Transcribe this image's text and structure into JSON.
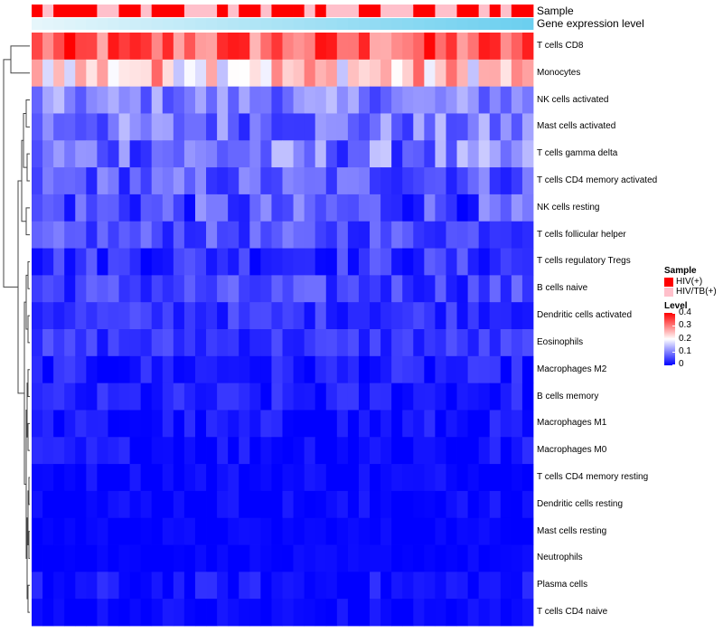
{
  "annotation_labels": {
    "sample": "Sample",
    "gene_expression_level": "Gene expression level"
  },
  "legend": {
    "sample_title": "Sample",
    "sample_items": [
      {
        "label": "HIV(+)",
        "color": "#ff0000"
      },
      {
        "label": "HIV/TB(+)",
        "color": "#ffc0cb"
      }
    ],
    "level_title": "Level",
    "level_ticks": [
      "0.4",
      "0.3",
      "0.2",
      "0.1",
      "0"
    ]
  },
  "colors": {
    "low": "#0000ff",
    "mid": "#ffffff",
    "high": "#ff0000",
    "gel_start": "#e6f6fb",
    "gel_end": "#6ccfef",
    "dendrogram": "#444444"
  },
  "chart_data": {
    "type": "heatmap",
    "title": "",
    "color_scale": {
      "min": 0,
      "max": 0.4,
      "legend_title": "Level"
    },
    "columns": {
      "count": 46
    },
    "column_annotations": {
      "sample": [
        "HIV(+)",
        "HIV/TB(+)",
        "HIV(+)",
        "HIV(+)",
        "HIV(+)",
        "HIV(+)",
        "HIV/TB(+)",
        "HIV/TB(+)",
        "HIV(+)",
        "HIV(+)",
        "HIV/TB(+)",
        "HIV(+)",
        "HIV(+)",
        "HIV(+)",
        "HIV/TB(+)",
        "HIV/TB(+)",
        "HIV/TB(+)",
        "HIV(+)",
        "HIV/TB(+)",
        "HIV(+)",
        "HIV(+)",
        "HIV/TB(+)",
        "HIV(+)",
        "HIV(+)",
        "HIV(+)",
        "HIV/TB(+)",
        "HIV(+)",
        "HIV/TB(+)",
        "HIV/TB(+)",
        "HIV/TB(+)",
        "HIV(+)",
        "HIV(+)",
        "HIV/TB(+)",
        "HIV/TB(+)",
        "HIV/TB(+)",
        "HIV(+)",
        "HIV(+)",
        "HIV/TB(+)",
        "HIV/TB(+)",
        "HIV(+)",
        "HIV(+)",
        "HIV/TB(+)",
        "HIV(+)",
        "HIV/TB(+)",
        "HIV(+)",
        "HIV(+)"
      ],
      "gene_expression_level": "continuous, increasing left to right"
    },
    "rows": [
      {
        "name": "T cells CD8",
        "typical": 0.32,
        "spread": 0.08
      },
      {
        "name": "Monocytes",
        "typical": 0.24,
        "spread": 0.09
      },
      {
        "name": "NK cells activated",
        "typical": 0.1,
        "spread": 0.05
      },
      {
        "name": "Mast cells activated",
        "typical": 0.09,
        "spread": 0.06
      },
      {
        "name": "T cells gamma delta",
        "typical": 0.09,
        "spread": 0.07
      },
      {
        "name": "T cells CD4 memory activated",
        "typical": 0.07,
        "spread": 0.05
      },
      {
        "name": "NK cells resting",
        "typical": 0.06,
        "spread": 0.06
      },
      {
        "name": "T cells follicular helper",
        "typical": 0.06,
        "spread": 0.04
      },
      {
        "name": "T cells regulatory  Tregs",
        "typical": 0.04,
        "spread": 0.04
      },
      {
        "name": "B cells naive",
        "typical": 0.05,
        "spread": 0.04
      },
      {
        "name": "Dendritic cells activated",
        "typical": 0.04,
        "spread": 0.03
      },
      {
        "name": "Eosinophils",
        "typical": 0.04,
        "spread": 0.03
      },
      {
        "name": "Macrophages M2",
        "typical": 0.02,
        "spread": 0.03
      },
      {
        "name": "B cells memory",
        "typical": 0.02,
        "spread": 0.03
      },
      {
        "name": "Macrophages M1",
        "typical": 0.01,
        "spread": 0.03
      },
      {
        "name": "Macrophages M0",
        "typical": 0.01,
        "spread": 0.03
      },
      {
        "name": "T cells CD4 memory resting",
        "typical": 0.005,
        "spread": 0.02
      },
      {
        "name": "Dendritic cells resting",
        "typical": 0.005,
        "spread": 0.02
      },
      {
        "name": "Mast cells resting",
        "typical": 0.003,
        "spread": 0.01
      },
      {
        "name": "Neutrophils",
        "typical": 0.002,
        "spread": 0.01
      },
      {
        "name": "Plasma cells",
        "typical": 0.01,
        "spread": 0.03
      },
      {
        "name": "T cells CD4 naive",
        "typical": 0.004,
        "spread": 0.02
      }
    ]
  }
}
